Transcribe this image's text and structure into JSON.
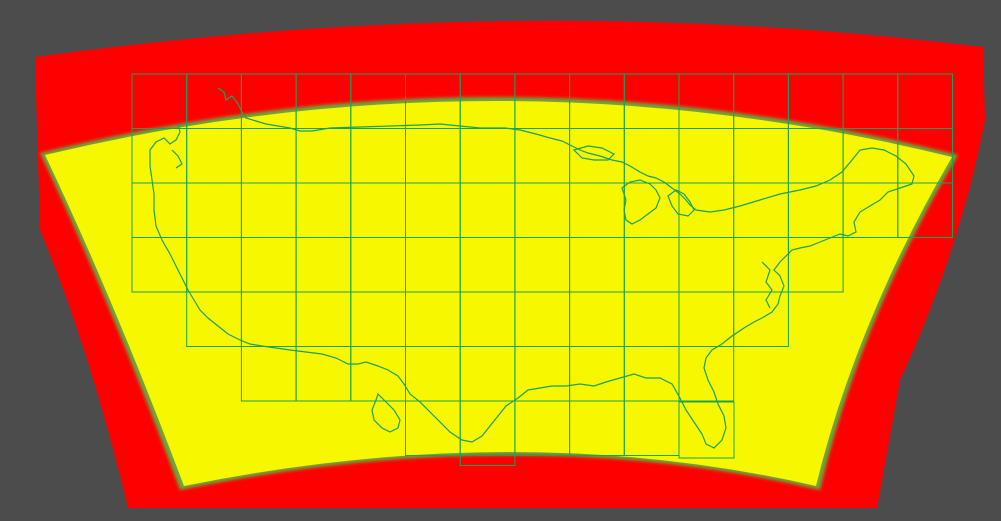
{
  "view": {
    "background_color": "#4c4c4c",
    "bleed_region_color": "#ff0000",
    "coverage_region_color": "#f7f700",
    "coverage_edge_color": "#6aa83a",
    "tile_grid_color": "#17a35a",
    "coastline_color": "#17a35a"
  },
  "tile_grid": {
    "row_columns": [
      15,
      15,
      15,
      13,
      11,
      9,
      5,
      1
    ],
    "row_first_column": [
      0,
      0,
      0,
      0,
      1,
      2,
      5,
      6
    ]
  },
  "extra_tiles": [
    {
      "label": "florida-tile"
    }
  ]
}
